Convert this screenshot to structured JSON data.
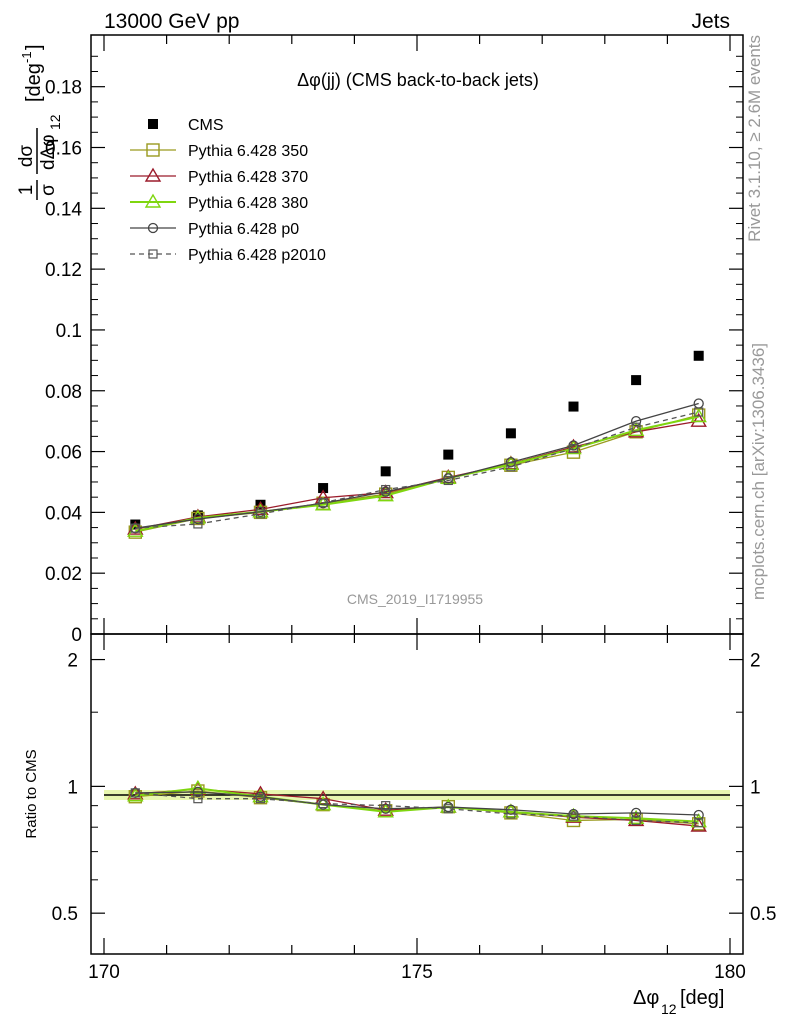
{
  "header": {
    "left": "13000 GeV pp",
    "right": "Jets"
  },
  "plot_title": "Δφ(jj) (CMS back-to-back jets)",
  "watermark": "CMS_2019_I1719955",
  "side_labels": {
    "rivet": "Rivet 3.1.10, ≥ 2.6M events",
    "mcplots": "mcplots.cern.ch [arXiv:1306.3436]"
  },
  "ylabel_main": {
    "frac_num": "1",
    "frac_den": "σ",
    "d_num": "dσ",
    "d_den": "dΔφ",
    "d_den_sub": "12",
    "unit": "[deg",
    "unit_sup": "-1",
    "unit_close": "]"
  },
  "ylabel_ratio": "Ratio to CMS",
  "xlabel": {
    "main": "Δφ",
    "sub": "12",
    "unit": " [deg]"
  },
  "legend": [
    {
      "name": "CMS",
      "color": "#000000",
      "marker": "filled-square",
      "dash": ""
    },
    {
      "name": "Pythia 6.428 350",
      "color": "#9a9a1f",
      "marker": "open-square",
      "dash": ""
    },
    {
      "name": "Pythia 6.428 370",
      "color": "#9b1b2b",
      "marker": "open-triangle",
      "dash": ""
    },
    {
      "name": "Pythia 6.428 380",
      "color": "#7fd60f",
      "marker": "open-triangle",
      "dash": ""
    },
    {
      "name": "Pythia 6.428 p0",
      "color": "#444444",
      "marker": "open-circle",
      "dash": ""
    },
    {
      "name": "Pythia 6.428 p2010",
      "color": "#555555",
      "marker": "open-square-small",
      "dash": "5,4"
    }
  ],
  "chart_data": [
    {
      "type": "scatter",
      "panel": "main",
      "x": [
        170.5,
        171.5,
        172.5,
        173.5,
        174.5,
        175.5,
        176.5,
        177.5,
        178.5,
        179.5
      ],
      "xlim": [
        170,
        180
      ],
      "ylim": [
        0,
        0.197
      ],
      "yticks": [
        0,
        0.02,
        0.04,
        0.06,
        0.08,
        0.1,
        0.12,
        0.14,
        0.16,
        0.18
      ],
      "ytick_labels": [
        "0",
        "0.02",
        "0.04",
        "0.06",
        "0.08",
        "0.1",
        "0.12",
        "0.14",
        "0.16",
        "0.18"
      ],
      "series": [
        {
          "name": "CMS",
          "values": [
            0.036,
            0.039,
            0.0425,
            0.048,
            0.0535,
            0.059,
            0.066,
            0.0748,
            0.0835,
            0.0915
          ]
        },
        {
          "name": "Pythia 6.428 350",
          "values": [
            0.0335,
            0.038,
            0.04,
            0.043,
            0.046,
            0.0515,
            0.0555,
            0.0598,
            0.0665,
            0.072
          ]
        },
        {
          "name": "Pythia 6.428 370",
          "values": [
            0.0345,
            0.0385,
            0.041,
            0.0448,
            0.0465,
            0.0515,
            0.056,
            0.0615,
            0.0665,
            0.07
          ]
        },
        {
          "name": "Pythia 6.428 380",
          "values": [
            0.0338,
            0.0382,
            0.0402,
            0.0425,
            0.0455,
            0.0512,
            0.0558,
            0.061,
            0.067,
            0.0715
          ]
        },
        {
          "name": "Pythia 6.428 p0",
          "values": [
            0.0348,
            0.0378,
            0.0402,
            0.043,
            0.0468,
            0.0512,
            0.0565,
            0.062,
            0.07,
            0.0758
          ]
        },
        {
          "name": "Pythia 6.428 p2010",
          "values": [
            0.0348,
            0.0362,
            0.0395,
            0.0432,
            0.0475,
            0.0505,
            0.055,
            0.061,
            0.068,
            0.073
          ]
        }
      ]
    },
    {
      "type": "line",
      "panel": "ratio",
      "x": [
        170.5,
        171.5,
        172.5,
        173.5,
        174.5,
        175.5,
        176.5,
        177.5,
        178.5,
        179.5
      ],
      "xlim": [
        170,
        180
      ],
      "ylim": [
        0.4,
        2.3
      ],
      "scale": "log",
      "xticks": [
        170,
        175,
        180
      ],
      "xtick_labels": [
        "170",
        "175",
        "180"
      ],
      "yticks": [
        0.5,
        1,
        2
      ],
      "ytick_labels": [
        "0.5",
        "1",
        "2"
      ],
      "series": [
        {
          "name": "Pythia 6.428 350",
          "values": [
            0.945,
            0.975,
            0.94,
            0.905,
            0.875,
            0.895,
            0.865,
            0.83,
            0.835,
            0.815
          ]
        },
        {
          "name": "Pythia 6.428 370",
          "values": [
            0.96,
            0.985,
            0.96,
            0.935,
            0.878,
            0.893,
            0.87,
            0.845,
            0.83,
            0.805
          ]
        },
        {
          "name": "Pythia 6.428 380",
          "values": [
            0.95,
            0.99,
            0.945,
            0.905,
            0.87,
            0.893,
            0.87,
            0.85,
            0.84,
            0.825
          ]
        },
        {
          "name": "Pythia 6.428 p0",
          "values": [
            0.965,
            0.97,
            0.945,
            0.905,
            0.885,
            0.893,
            0.88,
            0.86,
            0.865,
            0.855
          ]
        },
        {
          "name": "Pythia 6.428 p2010",
          "values": [
            0.965,
            0.935,
            0.935,
            0.91,
            0.9,
            0.885,
            0.86,
            0.85,
            0.83,
            0.82
          ]
        }
      ]
    }
  ]
}
